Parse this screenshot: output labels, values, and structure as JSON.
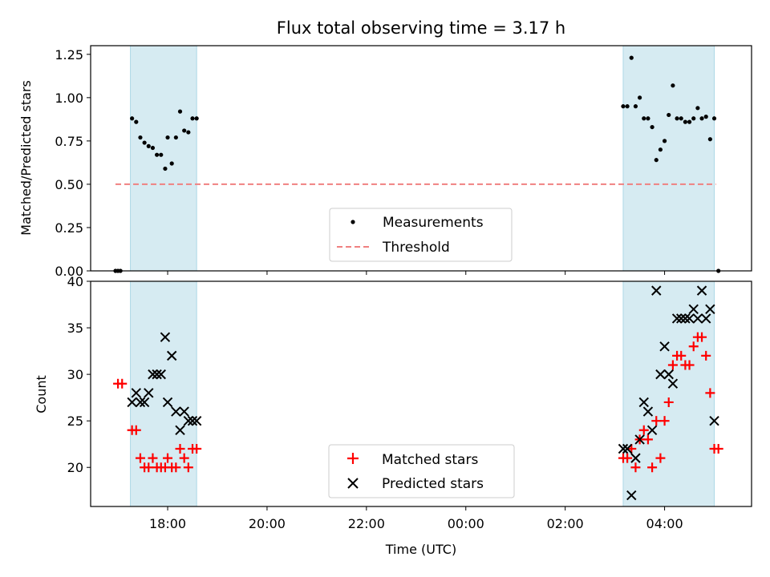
{
  "title": "Flux total observing time = 3.17 h",
  "xlabel": "Time (UTC)",
  "x_tick_labels": [
    "18:00",
    "20:00",
    "22:00",
    "00:00",
    "02:00",
    "04:00"
  ],
  "chart_data": [
    {
      "type": "scatter",
      "ylabel": "Matched/Predicted stars",
      "ylim": [
        0,
        1.3
      ],
      "xlim": [
        "16:27",
        "05:45"
      ],
      "grid": false,
      "legend": {
        "placement": "lower center",
        "entries": [
          "Measurements",
          "Threshold"
        ]
      },
      "y_tick_labels": [
        "0.00",
        "0.25",
        "0.50",
        "0.75",
        "1.00",
        "1.25"
      ],
      "shaded_intervals": [
        [
          "17:15",
          "18:35"
        ],
        [
          "03:10",
          "05:00"
        ]
      ],
      "threshold": {
        "name": "Threshold",
        "value": 0.5,
        "x_range": [
          "16:57",
          "05:02"
        ],
        "color": "#f08080"
      },
      "series": [
        {
          "name": "Measurements",
          "color": "#000000",
          "points": [
            [
              "16:57",
              0.0
            ],
            [
              "17:00",
              0.0
            ],
            [
              "17:03",
              0.0
            ],
            [
              "17:17",
              0.88
            ],
            [
              "17:22",
              0.86
            ],
            [
              "17:27",
              0.77
            ],
            [
              "17:32",
              0.74
            ],
            [
              "17:37",
              0.72
            ],
            [
              "17:42",
              0.71
            ],
            [
              "17:47",
              0.67
            ],
            [
              "17:52",
              0.67
            ],
            [
              "17:57",
              0.59
            ],
            [
              "18:00",
              0.77
            ],
            [
              "18:05",
              0.62
            ],
            [
              "18:10",
              0.77
            ],
            [
              "18:15",
              0.92
            ],
            [
              "18:20",
              0.81
            ],
            [
              "18:25",
              0.8
            ],
            [
              "18:30",
              0.88
            ],
            [
              "18:35",
              0.88
            ],
            [
              "03:10",
              0.95
            ],
            [
              "03:15",
              0.95
            ],
            [
              "03:20",
              1.23
            ],
            [
              "03:25",
              0.95
            ],
            [
              "03:30",
              1.0
            ],
            [
              "03:35",
              0.88
            ],
            [
              "03:40",
              0.88
            ],
            [
              "03:45",
              0.83
            ],
            [
              "03:50",
              0.64
            ],
            [
              "03:55",
              0.7
            ],
            [
              "04:00",
              0.75
            ],
            [
              "04:05",
              0.9
            ],
            [
              "04:10",
              1.07
            ],
            [
              "04:15",
              0.88
            ],
            [
              "04:20",
              0.88
            ],
            [
              "04:25",
              0.86
            ],
            [
              "04:30",
              0.86
            ],
            [
              "04:35",
              0.88
            ],
            [
              "04:40",
              0.94
            ],
            [
              "04:45",
              0.88
            ],
            [
              "04:50",
              0.89
            ],
            [
              "04:55",
              0.76
            ],
            [
              "05:00",
              0.88
            ],
            [
              "05:05",
              0.0
            ]
          ]
        }
      ]
    },
    {
      "type": "scatter",
      "ylabel": "Count",
      "ylim": [
        15.8,
        40
      ],
      "xlim": [
        "16:27",
        "05:45"
      ],
      "grid": false,
      "legend": {
        "placement": "lower center",
        "entries": [
          "Matched stars",
          "Predicted stars"
        ]
      },
      "y_tick_labels": [
        "20",
        "25",
        "30",
        "35",
        "40"
      ],
      "shaded_intervals": [
        [
          "17:15",
          "18:35"
        ],
        [
          "03:10",
          "05:00"
        ]
      ],
      "series": [
        {
          "name": "Matched stars",
          "marker": "plus",
          "color": "#ff0000",
          "points": [
            [
              "17:00",
              29
            ],
            [
              "17:05",
              29
            ],
            [
              "17:17",
              24
            ],
            [
              "17:22",
              24
            ],
            [
              "17:27",
              21
            ],
            [
              "17:32",
              20
            ],
            [
              "17:37",
              20
            ],
            [
              "17:42",
              21
            ],
            [
              "17:47",
              20
            ],
            [
              "17:52",
              20
            ],
            [
              "17:57",
              20
            ],
            [
              "18:00",
              21
            ],
            [
              "18:05",
              20
            ],
            [
              "18:10",
              20
            ],
            [
              "18:15",
              22
            ],
            [
              "18:20",
              21
            ],
            [
              "18:25",
              20
            ],
            [
              "18:30",
              22
            ],
            [
              "18:35",
              22
            ],
            [
              "03:10",
              21
            ],
            [
              "03:15",
              21
            ],
            [
              "03:20",
              22
            ],
            [
              "03:25",
              20
            ],
            [
              "03:30",
              23
            ],
            [
              "03:35",
              24
            ],
            [
              "03:40",
              23
            ],
            [
              "03:45",
              20
            ],
            [
              "03:50",
              25
            ],
            [
              "03:55",
              21
            ],
            [
              "04:00",
              25
            ],
            [
              "04:05",
              27
            ],
            [
              "04:10",
              31
            ],
            [
              "04:15",
              32
            ],
            [
              "04:20",
              32
            ],
            [
              "04:25",
              31
            ],
            [
              "04:30",
              31
            ],
            [
              "04:35",
              33
            ],
            [
              "04:40",
              34
            ],
            [
              "04:45",
              34
            ],
            [
              "04:50",
              32
            ],
            [
              "04:55",
              28
            ],
            [
              "05:00",
              22
            ],
            [
              "05:05",
              22
            ]
          ]
        },
        {
          "name": "Predicted stars",
          "marker": "x",
          "color": "#000000",
          "points": [
            [
              "17:17",
              27
            ],
            [
              "17:22",
              28
            ],
            [
              "17:27",
              27
            ],
            [
              "17:32",
              27
            ],
            [
              "17:37",
              28
            ],
            [
              "17:42",
              30
            ],
            [
              "17:47",
              30
            ],
            [
              "17:52",
              30
            ],
            [
              "17:57",
              34
            ],
            [
              "18:00",
              27
            ],
            [
              "18:05",
              32
            ],
            [
              "18:10",
              26
            ],
            [
              "18:15",
              24
            ],
            [
              "18:20",
              26
            ],
            [
              "18:25",
              25
            ],
            [
              "18:30",
              25
            ],
            [
              "18:35",
              25
            ],
            [
              "03:10",
              22
            ],
            [
              "03:15",
              22
            ],
            [
              "03:20",
              17
            ],
            [
              "03:25",
              21
            ],
            [
              "03:30",
              23
            ],
            [
              "03:35",
              27
            ],
            [
              "03:40",
              26
            ],
            [
              "03:45",
              24
            ],
            [
              "03:50",
              39
            ],
            [
              "03:55",
              30
            ],
            [
              "04:00",
              33
            ],
            [
              "04:05",
              30
            ],
            [
              "04:10",
              29
            ],
            [
              "04:15",
              36
            ],
            [
              "04:20",
              36
            ],
            [
              "04:25",
              36
            ],
            [
              "04:30",
              36
            ],
            [
              "04:35",
              37
            ],
            [
              "04:40",
              36
            ],
            [
              "04:45",
              39
            ],
            [
              "04:50",
              36
            ],
            [
              "04:55",
              37
            ],
            [
              "05:00",
              25
            ]
          ]
        }
      ]
    }
  ]
}
